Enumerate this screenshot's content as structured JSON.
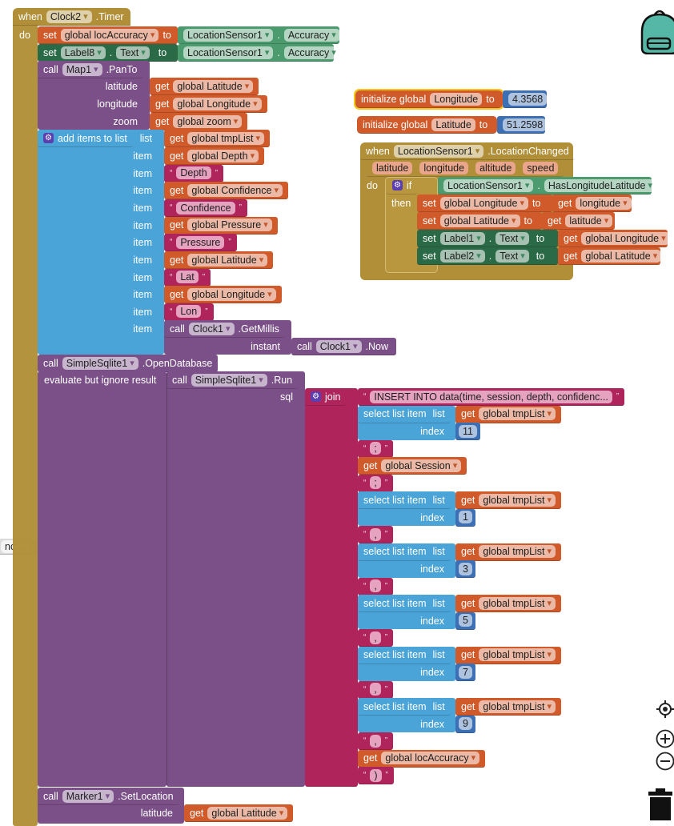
{
  "timer_event": {
    "when": "when",
    "component": "Clock2",
    "event": ".Timer",
    "do": "do"
  },
  "set_loc_accuracy": {
    "set": "set",
    "var": "global locAccuracy",
    "to": "to",
    "component": "LocationSensor1",
    "dot": ".",
    "prop": "Accuracy"
  },
  "set_label8": {
    "set": "set",
    "component": "Label8",
    "dot": ".",
    "prop": "Text",
    "to": "to",
    "src_component": "LocationSensor1",
    "src_dot": ".",
    "src_prop": "Accuracy"
  },
  "pan_to": {
    "call": "call",
    "component": "Map1",
    "method": ".PanTo",
    "params": [
      {
        "label": "latitude",
        "get": "get",
        "var": "global Latitude"
      },
      {
        "label": "longitude",
        "get": "get",
        "var": "global Longitude"
      },
      {
        "label": "zoom",
        "get": "get",
        "var": "global zoom"
      }
    ]
  },
  "add_items": {
    "label": "add items to list",
    "list_label": "list",
    "get": "get",
    "list_var": "global tmpList",
    "item_label": "item",
    "items": [
      {
        "type": "get",
        "text": "global Depth"
      },
      {
        "type": "text",
        "text": "Depth"
      },
      {
        "type": "get",
        "text": "global Confidence"
      },
      {
        "type": "text",
        "text": "Confidence"
      },
      {
        "type": "get",
        "text": "global Pressure"
      },
      {
        "type": "text",
        "text": "Pressure"
      },
      {
        "type": "get",
        "text": "global Latitude"
      },
      {
        "type": "text",
        "text": "Lat"
      },
      {
        "type": "get",
        "text": "global Longitude"
      },
      {
        "type": "text",
        "text": "Lon"
      }
    ],
    "millis": {
      "call": "call",
      "component": "Clock1",
      "method": ".GetMillis",
      "instant_label": "instant",
      "now_call": "call",
      "now_component": "Clock1",
      "now_method": ".Now"
    }
  },
  "open_db": {
    "call": "call",
    "component": "SimpleSqlite1",
    "method": ".OpenDatabase"
  },
  "evaluate": {
    "label": "evaluate but ignore result",
    "call": "call",
    "component": "SimpleSqlite1",
    "method": ".Run",
    "sql_label": "sql",
    "join_label": "join",
    "join_items": [
      {
        "type": "text",
        "text": "INSERT INTO data(time, session, depth, confidenc..."
      },
      {
        "type": "select",
        "label": "select list item",
        "list_label": "list",
        "var": "global tmpList",
        "index_label": "index",
        "index": "11"
      },
      {
        "type": "text",
        "text": ";"
      },
      {
        "type": "get",
        "text": "global Session"
      },
      {
        "type": "text",
        "text": ";"
      },
      {
        "type": "select",
        "label": "select list item",
        "list_label": "list",
        "var": "global tmpList",
        "index_label": "index",
        "index": "1"
      },
      {
        "type": "text",
        "text": ","
      },
      {
        "type": "select",
        "label": "select list item",
        "list_label": "list",
        "var": "global tmpList",
        "index_label": "index",
        "index": "3"
      },
      {
        "type": "text",
        "text": ","
      },
      {
        "type": "select",
        "label": "select list item",
        "list_label": "list",
        "var": "global tmpList",
        "index_label": "index",
        "index": "5"
      },
      {
        "type": "text",
        "text": ","
      },
      {
        "type": "select",
        "label": "select list item",
        "list_label": "list",
        "var": "global tmpList",
        "index_label": "index",
        "index": "7"
      },
      {
        "type": "text",
        "text": ","
      },
      {
        "type": "select",
        "label": "select list item",
        "list_label": "list",
        "var": "global tmpList",
        "index_label": "index",
        "index": "9"
      },
      {
        "type": "text",
        "text": ","
      },
      {
        "type": "get",
        "text": "global locAccuracy"
      },
      {
        "type": "text",
        "text": ")"
      }
    ],
    "get": "get"
  },
  "set_location": {
    "call": "call",
    "component": "Marker1",
    "method": ".SetLocation",
    "param_label": "latitude",
    "get": "get",
    "var": "global Latitude"
  },
  "offscreen_text": {
    "text": "nc..."
  },
  "quotes": {
    "open": "“",
    "close": "”"
  },
  "init_longitude": {
    "label": "initialize global",
    "name": "Longitude",
    "to": "to",
    "value": "4.3568"
  },
  "init_latitude": {
    "label": "initialize global",
    "name": "Latitude",
    "to": "to",
    "value": "51.2598"
  },
  "location_changed": {
    "when": "when",
    "component": "LocationSensor1",
    "event": ".LocationChanged",
    "params": [
      "latitude",
      "longitude",
      "altitude",
      "speed"
    ],
    "do": "do",
    "if": "if",
    "then": "then",
    "cond_component": "LocationSensor1",
    "cond_dot": ".",
    "cond_prop": "HasLongitudeLatitude",
    "set": "set",
    "to": "to",
    "get": "get",
    "dot": ".",
    "set_longitude_var": "global Longitude",
    "get_longitude": "longitude",
    "set_latitude_var": "global Latitude",
    "get_latitude": "latitude",
    "label1": "Label1",
    "label1_prop": "Text",
    "label1_src": "global Longitude",
    "label2": "Label2",
    "label2_prop": "Text",
    "label2_src": "global Latitude"
  },
  "colors": {
    "event": "#b18f38",
    "variable": "#d05a2a",
    "component": "#4b9b6e",
    "component_setter": "#2b6a46",
    "procedure": "#7b5088",
    "list": "#4ba4d7",
    "text": "#b0245c",
    "math": "#3c6fb4",
    "selected_outline": "#f5c518"
  },
  "workspace_icons": [
    "backpack-icon",
    "recenter-icon",
    "zoom-in-icon",
    "zoom-out-icon",
    "trash-icon"
  ]
}
